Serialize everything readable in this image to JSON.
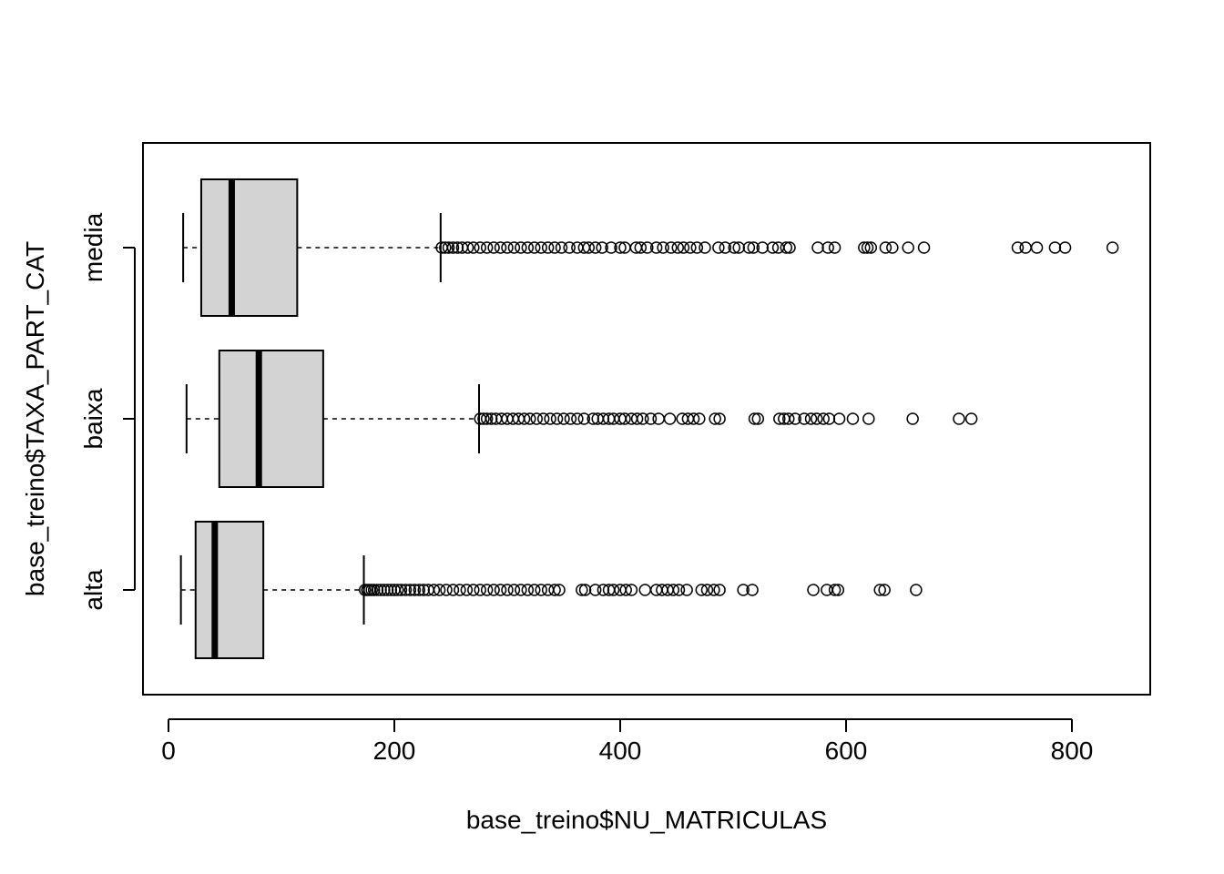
{
  "chart_data": {
    "type": "boxplot",
    "orientation": "horizontal",
    "title": "",
    "xlabel": "base_treino$NU_MATRICULAS",
    "ylabel": "base_treino$TAXA_PART_CAT",
    "xlim": [
      -22,
      870
    ],
    "xticks": [
      0,
      200,
      400,
      600,
      800
    ],
    "grid": false,
    "box_fill": "#d3d3d3",
    "categories": [
      "alta",
      "baixa",
      "media"
    ],
    "boxes": [
      {
        "name": "alta",
        "whisker_low": 11,
        "q1": 24,
        "median": 41,
        "q3": 84,
        "whisker_high": 173,
        "outliers": [
          174,
          176,
          178,
          180,
          182,
          185,
          188,
          191,
          194,
          197,
          200,
          203,
          206,
          210,
          214,
          218,
          222,
          226,
          230,
          235,
          240,
          246,
          252,
          258,
          264,
          270,
          276,
          282,
          288,
          294,
          300,
          306,
          312,
          318,
          324,
          330,
          336,
          342,
          346,
          366,
          369,
          378,
          385,
          390,
          394,
          400,
          405,
          410,
          422,
          432,
          437,
          442,
          447,
          452,
          459,
          472,
          477,
          483,
          488,
          509,
          517,
          571,
          583,
          590,
          593,
          630,
          634,
          662
        ]
      },
      {
        "name": "baixa",
        "whisker_low": 16,
        "q1": 45,
        "median": 80,
        "q3": 137,
        "whisker_high": 275,
        "outliers": [
          276,
          279,
          282,
          286,
          290,
          295,
          300,
          305,
          310,
          315,
          320,
          326,
          332,
          338,
          344,
          350,
          356,
          362,
          368,
          376,
          380,
          385,
          390,
          394,
          400,
          404,
          410,
          415,
          420,
          427,
          434,
          444,
          455,
          460,
          465,
          470,
          484,
          488,
          519,
          522,
          541,
          545,
          549,
          555,
          563,
          569,
          574,
          580,
          585,
          594,
          606,
          620,
          659,
          700,
          711
        ]
      },
      {
        "name": "media",
        "whisker_low": 13,
        "q1": 29,
        "median": 56,
        "q3": 114,
        "whisker_high": 241,
        "outliers": [
          242,
          245,
          248,
          252,
          256,
          260,
          265,
          270,
          276,
          282,
          288,
          294,
          300,
          306,
          312,
          318,
          324,
          330,
          336,
          342,
          348,
          355,
          362,
          368,
          372,
          378,
          384,
          392,
          400,
          404,
          414,
          418,
          424,
          432,
          438,
          445,
          451,
          456,
          462,
          468,
          475,
          487,
          493,
          501,
          505,
          514,
          518,
          526,
          535,
          540,
          547,
          550,
          575,
          584,
          590,
          616,
          619,
          622,
          635,
          641,
          655,
          669,
          752,
          759,
          769,
          785,
          794,
          836
        ]
      }
    ]
  }
}
